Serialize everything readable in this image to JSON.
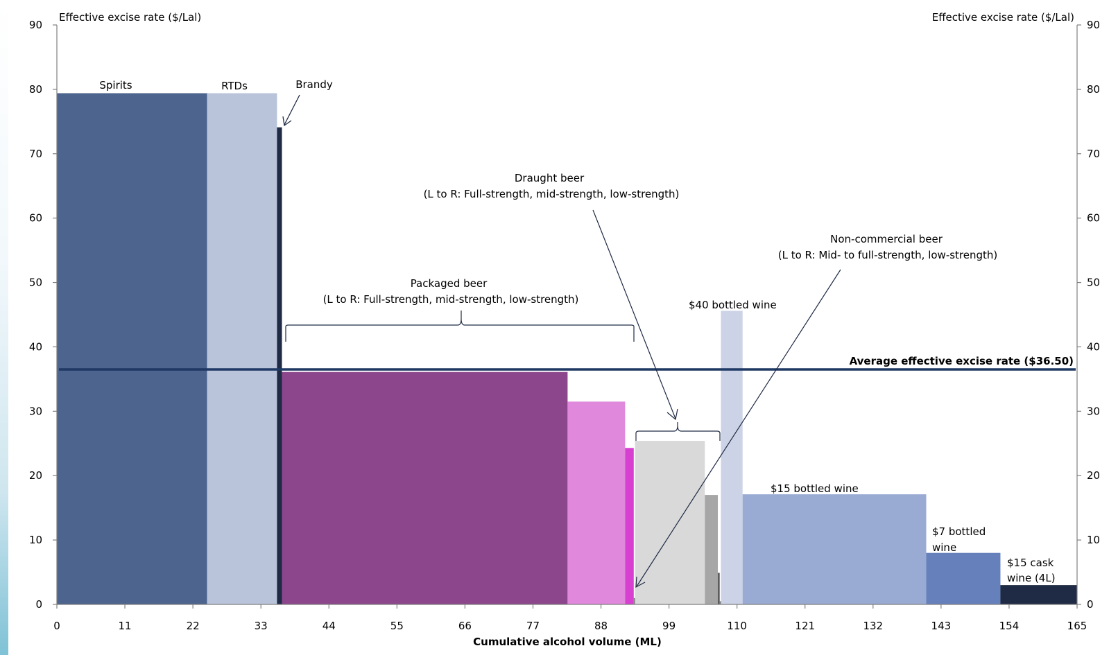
{
  "chart_data": {
    "type": "bar",
    "variant": "variable-width",
    "xlabel": "Cumulative alcohol volume (ML)",
    "ylabel_left": "Effective excise rate ($/Lal)",
    "ylabel_right": "Effective excise rate ($/Lal)",
    "xlim": [
      0,
      165
    ],
    "ylim": [
      0,
      90
    ],
    "x_ticks": [
      "0",
      "11",
      "22",
      "33",
      "44",
      "55",
      "66",
      "77",
      "88",
      "99",
      "110",
      "121",
      "132",
      "143",
      "154",
      "165"
    ],
    "y_ticks": [
      "0",
      "10",
      "20",
      "30",
      "40",
      "50",
      "60",
      "70",
      "80",
      "90"
    ],
    "average_line": {
      "value": 36.5,
      "label": "Average effective excise rate ($36.50)",
      "color": "#1f3864"
    },
    "bars": [
      {
        "category": "Spirits",
        "x_start": 0,
        "x_end": 24.3,
        "value": 79.4,
        "color": "#4d648f"
      },
      {
        "category": "RTDs",
        "x_start": 24.3,
        "x_end": 35.6,
        "value": 79.4,
        "color": "#b9c4da"
      },
      {
        "category": "Brandy",
        "x_start": 35.6,
        "x_end": 36.4,
        "value": 74.1,
        "color": "#1f2a44"
      },
      {
        "category": "Packaged beer full-strength",
        "x_start": 36.4,
        "x_end": 82.6,
        "value": 36.1,
        "color": "#8b468c"
      },
      {
        "category": "Packaged beer mid-strength",
        "x_start": 82.6,
        "x_end": 91.9,
        "value": 31.5,
        "color": "#e088dc"
      },
      {
        "category": "Packaged beer low-strength",
        "x_start": 91.9,
        "x_end": 93.3,
        "value": 24.3,
        "color": "#d63fd0"
      },
      {
        "category": "Draught beer full-strength",
        "x_start": 93.5,
        "x_end": 104.8,
        "value": 25.4,
        "color": "#d9d9d9"
      },
      {
        "category": "Draught beer mid-strength",
        "x_start": 104.8,
        "x_end": 106.9,
        "value": 17.0,
        "color": "#a6a6a6"
      },
      {
        "category": "Draught beer low-strength",
        "x_start": 106.9,
        "x_end": 107.2,
        "value": 4.9,
        "color": "#595959"
      },
      {
        "category": "Non-commercial beer mid- to full-strength",
        "x_start": 93.3,
        "x_end": 93.5,
        "value": 1.0,
        "color": "#7f7f7f"
      },
      {
        "category": "Non-commercial beer low-strength",
        "x_start": 107.2,
        "x_end": 107.4,
        "value": 0.5,
        "color": "#7f7f7f"
      },
      {
        "category": "$40 bottled wine",
        "x_start": 107.4,
        "x_end": 110.9,
        "value": 45.6,
        "color": "#ccd3e6"
      },
      {
        "category": "$15 bottled wine",
        "x_start": 110.9,
        "x_end": 140.6,
        "value": 17.1,
        "color": "#99aad3"
      },
      {
        "category": "$7 bottled wine",
        "x_start": 140.6,
        "x_end": 152.6,
        "value": 8.0,
        "color": "#6580bb"
      },
      {
        "category": "$15 cask wine (4L)",
        "x_start": 152.6,
        "x_end": 165,
        "value": 3.0,
        "color": "#1f2a44"
      }
    ],
    "annotations": {
      "spirits": "Spirits",
      "rtds": "RTDs",
      "brandy": "Brandy",
      "packaged_beer_title": "Packaged beer",
      "packaged_beer_sub": "(L to R: Full-strength, mid-strength, low-strength)",
      "draught_beer_title": "Draught beer",
      "draught_beer_sub": "(L to R: Full-strength, mid-strength, low-strength)",
      "noncommercial_title": "Non-commercial beer",
      "noncommercial_sub": "(L to R: Mid- to full-strength, low-strength)",
      "wine40": "$40 bottled wine",
      "wine15": "$15 bottled wine",
      "wine7_line1": "$7 bottled",
      "wine7_line2": "wine",
      "cask_line1": "$15 cask",
      "cask_line2": "wine (4L)"
    }
  }
}
